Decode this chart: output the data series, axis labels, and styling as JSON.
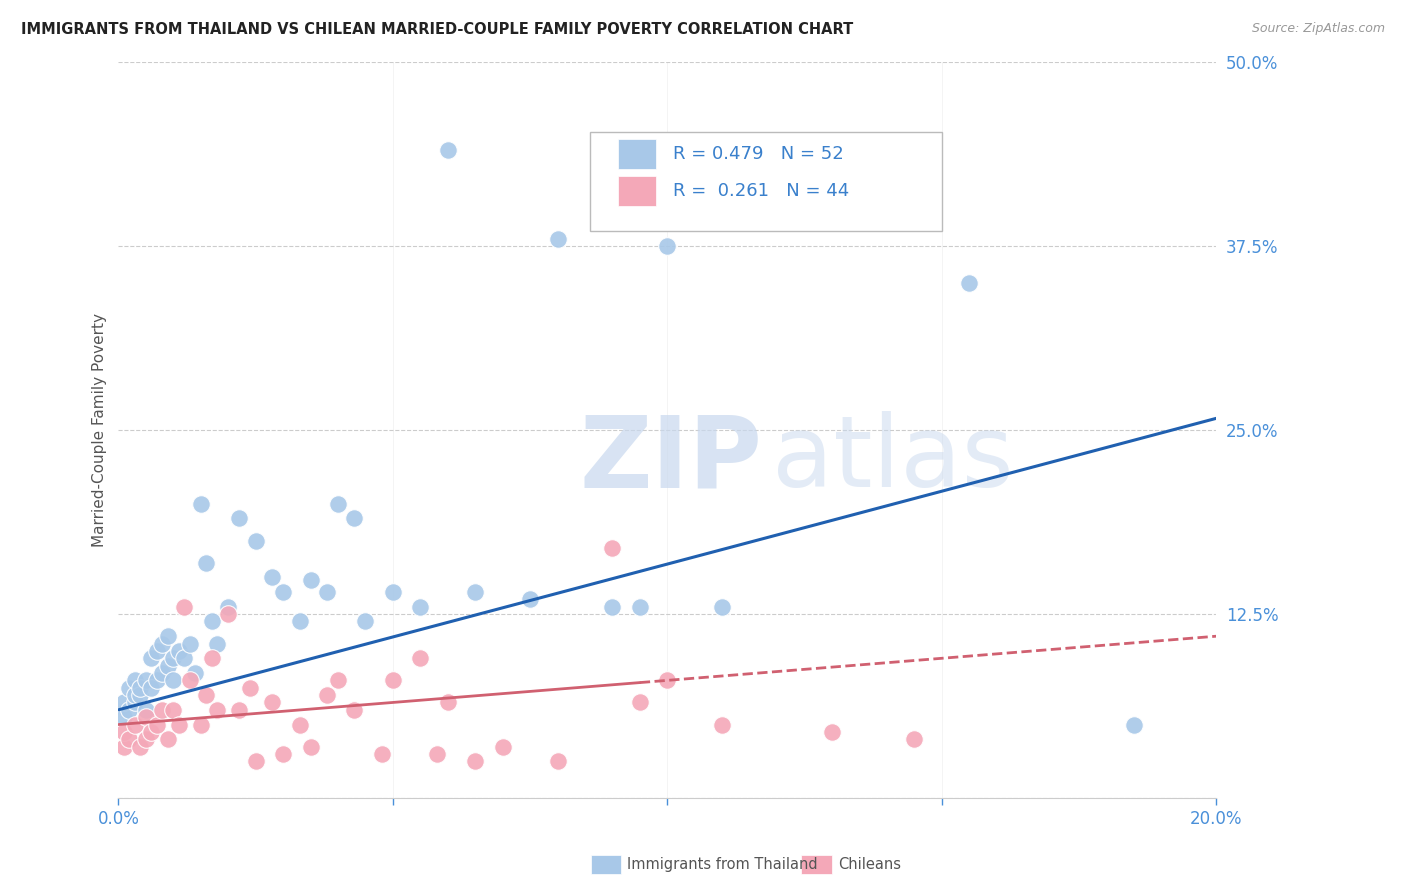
{
  "title": "IMMIGRANTS FROM THAILAND VS CHILEAN MARRIED-COUPLE FAMILY POVERTY CORRELATION CHART",
  "source": "Source: ZipAtlas.com",
  "ylabel": "Married-Couple Family Poverty",
  "xlim": [
    0.0,
    0.2
  ],
  "ylim": [
    0.0,
    0.5
  ],
  "xticks": [
    0.0,
    0.05,
    0.1,
    0.15,
    0.2
  ],
  "yticks": [
    0.0,
    0.125,
    0.25,
    0.375,
    0.5
  ],
  "xtick_labels": [
    "0.0%",
    "",
    "",
    "",
    "20.0%"
  ],
  "ytick_labels": [
    "",
    "12.5%",
    "25.0%",
    "37.5%",
    "50.0%"
  ],
  "background_color": "#ffffff",
  "grid_color": "#cccccc",
  "watermark1": "ZIP",
  "watermark2": "atlas",
  "legend1_label": "R = 0.479   N = 52",
  "legend2_label": "R =  0.261   N = 44",
  "legend_bottom_label1": "Immigrants from Thailand",
  "legend_bottom_label2": "Chileans",
  "thailand_color": "#a8c8e8",
  "chilean_color": "#f4a8b8",
  "thailand_line_color": "#2060b0",
  "chilean_line_color": "#d06070",
  "thailand_scatter_x": [
    0.001,
    0.001,
    0.002,
    0.002,
    0.003,
    0.003,
    0.003,
    0.004,
    0.004,
    0.005,
    0.005,
    0.006,
    0.006,
    0.007,
    0.007,
    0.008,
    0.008,
    0.009,
    0.009,
    0.01,
    0.01,
    0.011,
    0.012,
    0.013,
    0.014,
    0.015,
    0.016,
    0.017,
    0.018,
    0.02,
    0.022,
    0.025,
    0.028,
    0.03,
    0.033,
    0.035,
    0.038,
    0.04,
    0.043,
    0.045,
    0.05,
    0.055,
    0.06,
    0.065,
    0.075,
    0.08,
    0.09,
    0.095,
    0.1,
    0.11,
    0.155,
    0.185
  ],
  "thailand_scatter_y": [
    0.055,
    0.065,
    0.06,
    0.075,
    0.065,
    0.07,
    0.08,
    0.07,
    0.075,
    0.06,
    0.08,
    0.075,
    0.095,
    0.08,
    0.1,
    0.085,
    0.105,
    0.09,
    0.11,
    0.095,
    0.08,
    0.1,
    0.095,
    0.105,
    0.085,
    0.2,
    0.16,
    0.12,
    0.105,
    0.13,
    0.19,
    0.175,
    0.15,
    0.14,
    0.12,
    0.148,
    0.14,
    0.2,
    0.19,
    0.12,
    0.14,
    0.13,
    0.44,
    0.14,
    0.135,
    0.38,
    0.13,
    0.13,
    0.375,
    0.13,
    0.35,
    0.05
  ],
  "chilean_scatter_x": [
    0.001,
    0.001,
    0.002,
    0.003,
    0.004,
    0.005,
    0.005,
    0.006,
    0.007,
    0.008,
    0.009,
    0.01,
    0.011,
    0.012,
    0.013,
    0.015,
    0.016,
    0.017,
    0.018,
    0.02,
    0.022,
    0.024,
    0.025,
    0.028,
    0.03,
    0.033,
    0.035,
    0.038,
    0.04,
    0.043,
    0.048,
    0.05,
    0.055,
    0.058,
    0.06,
    0.065,
    0.07,
    0.08,
    0.09,
    0.095,
    0.1,
    0.11,
    0.13,
    0.145
  ],
  "chilean_scatter_y": [
    0.035,
    0.045,
    0.04,
    0.05,
    0.035,
    0.055,
    0.04,
    0.045,
    0.05,
    0.06,
    0.04,
    0.06,
    0.05,
    0.13,
    0.08,
    0.05,
    0.07,
    0.095,
    0.06,
    0.125,
    0.06,
    0.075,
    0.025,
    0.065,
    0.03,
    0.05,
    0.035,
    0.07,
    0.08,
    0.06,
    0.03,
    0.08,
    0.095,
    0.03,
    0.065,
    0.025,
    0.035,
    0.025,
    0.17,
    0.065,
    0.08,
    0.05,
    0.045,
    0.04
  ],
  "thai_line_x0": 0.0,
  "thai_line_y0": 0.06,
  "thai_line_x1": 0.2,
  "thai_line_y1": 0.258,
  "chil_line_x0": 0.0,
  "chil_line_y0": 0.05,
  "chil_line_x1": 0.2,
  "chil_line_y1": 0.11,
  "chil_line_dash_from": 0.095
}
